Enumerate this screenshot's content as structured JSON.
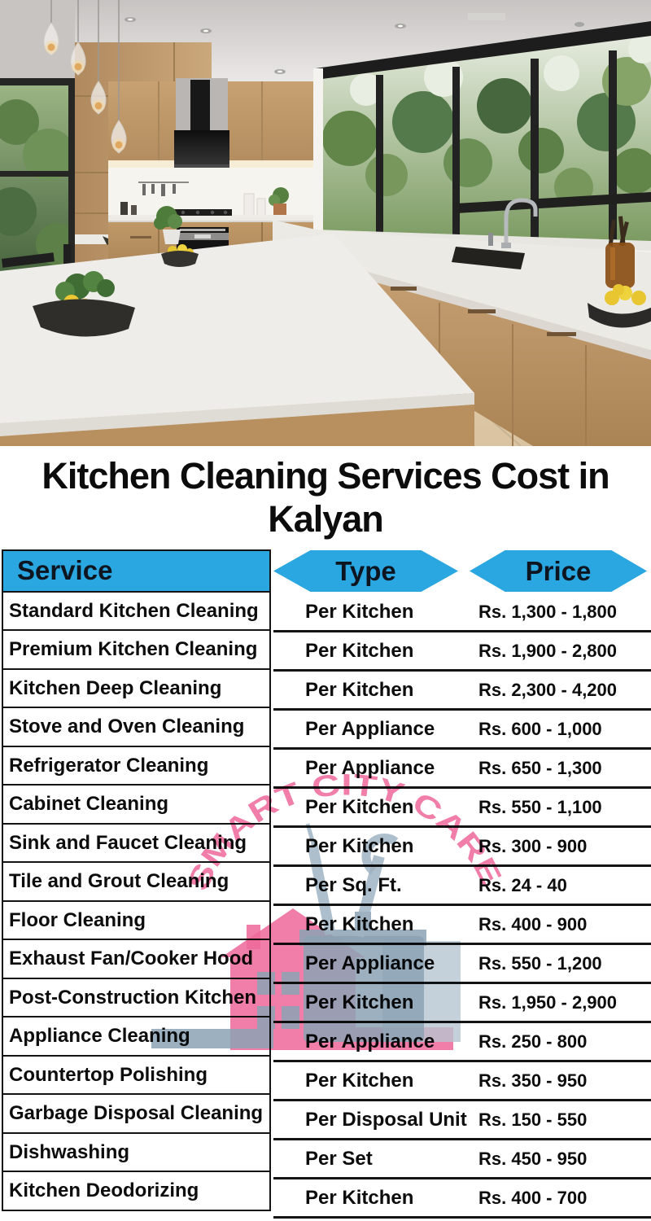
{
  "title": {
    "line1": "Kitchen Cleaning Services Cost in",
    "line2": "Kalyan"
  },
  "watermark": {
    "arc_text": "SMART CITY CARE"
  },
  "colors": {
    "header_blue": "#2aa7e1",
    "watermark_pink": "#ee6b9b",
    "watermark_gray": "#8ca2b4",
    "table_border": "#141414",
    "title_text": "#0c0c0c"
  },
  "table": {
    "headers": [
      {
        "label": "Service"
      },
      {
        "label": "Type"
      },
      {
        "label": "Price"
      }
    ],
    "rows": [
      {
        "service": "Standard Kitchen Cleaning",
        "type": "Per Kitchen",
        "price": "Rs. 1,300 - 1,800"
      },
      {
        "service": "Premium Kitchen Cleaning",
        "type": "Per Kitchen",
        "price": "Rs. 1,900 - 2,800"
      },
      {
        "service": "Kitchen Deep Cleaning",
        "type": "Per Kitchen",
        "price": "Rs. 2,300 - 4,200"
      },
      {
        "service": "Stove and Oven Cleaning",
        "type": "Per Appliance",
        "price": "Rs. 600 - 1,000"
      },
      {
        "service": "Refrigerator Cleaning",
        "type": "Per Appliance",
        "price": "Rs. 650 - 1,300"
      },
      {
        "service": "Cabinet Cleaning",
        "type": "Per Kitchen",
        "price": "Rs. 550 - 1,100"
      },
      {
        "service": "Sink and Faucet Cleaning",
        "type": "Per Kitchen",
        "price": "Rs. 300 - 900"
      },
      {
        "service": "Tile and Grout Cleaning",
        "type": "Per Sq. Ft.",
        "price": "Rs. 24 - 40"
      },
      {
        "service": "Floor Cleaning",
        "type": "Per Kitchen",
        "price": "Rs. 400 - 900"
      },
      {
        "service": "Exhaust Fan/Cooker Hood",
        "type": "Per Appliance",
        "price": "Rs. 550 - 1,200"
      },
      {
        "service": "Post-Construction Kitchen",
        "type": "Per Kitchen",
        "price": "Rs. 1,950 - 2,900"
      },
      {
        "service": "Appliance Cleaning",
        "type": "Per Appliance",
        "price": "Rs. 250 - 800"
      },
      {
        "service": "Countertop Polishing",
        "type": "Per Kitchen",
        "price": "Rs. 350 - 950"
      },
      {
        "service": "Garbage Disposal Cleaning",
        "type": "Per Disposal Unit",
        "price": "Rs. 150 - 550"
      },
      {
        "service": "Dishwashing",
        "type": "Per Set",
        "price": "Rs. 450 - 950"
      },
      {
        "service": "Kitchen Deodorizing",
        "type": "Per Kitchen",
        "price": "Rs. 400 - 700"
      }
    ]
  }
}
